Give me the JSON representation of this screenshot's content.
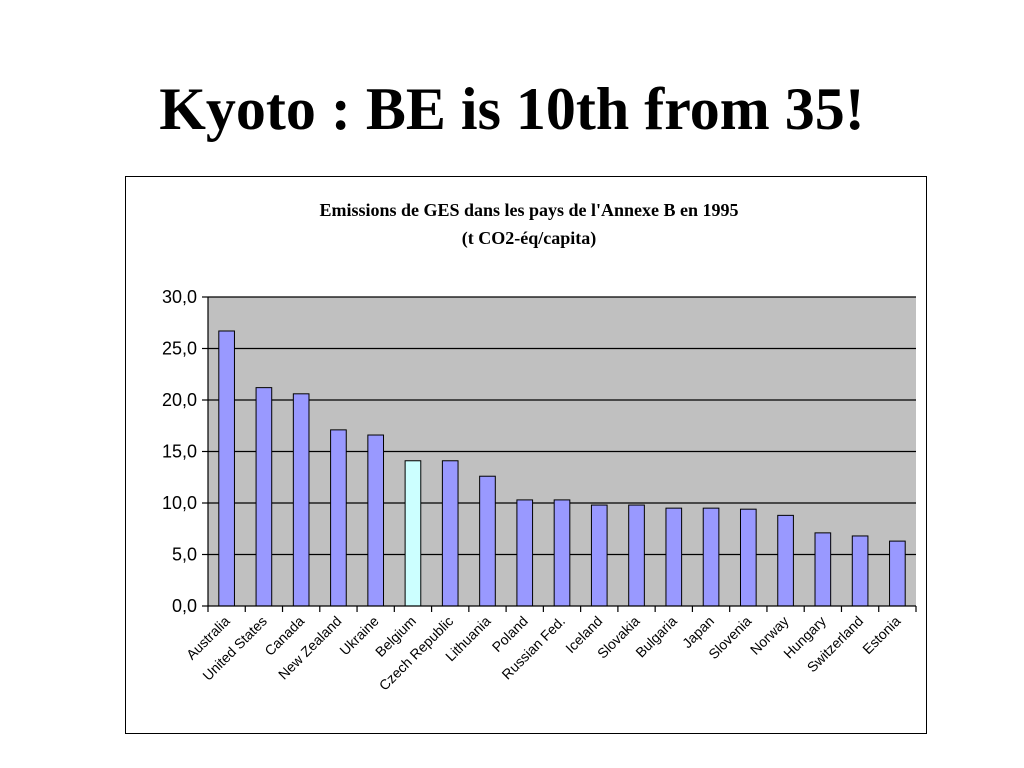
{
  "slide": {
    "title": "Kyoto : BE is 10th from 35!"
  },
  "chart_data": {
    "type": "bar",
    "title": "Emissions de GES dans les pays de l'Annexe B en 1995",
    "subtitle": "(t CO2-éq/capita)",
    "xlabel": "",
    "ylabel": "",
    "ylim": [
      0,
      30
    ],
    "y_tick_labels": [
      "0,0",
      "5,0",
      "10,0",
      "15,0",
      "20,0",
      "25,0",
      "30,0"
    ],
    "grid": true,
    "legend": "none",
    "categories": [
      "Australia",
      "United States",
      "Canada",
      "New Zealand",
      "Ukraine",
      "Belgium",
      "Czech Republic",
      "Lithuania",
      "Poland",
      "Russian Fed.",
      "Iceland",
      "Slovakia",
      "Bulgaria",
      "Japan",
      "Slovenia",
      "Norway",
      "Hungary",
      "Switzerland",
      "Estonia"
    ],
    "values": [
      26.7,
      21.2,
      20.6,
      17.1,
      16.6,
      14.1,
      14.1,
      12.6,
      10.3,
      10.3,
      9.8,
      9.8,
      9.5,
      9.5,
      9.4,
      8.8,
      7.1,
      6.8,
      6.3
    ],
    "highlight_category": "Belgium",
    "colors": {
      "bar": "#9999FF",
      "highlight_bar": "#CCFFFF",
      "plot_background": "#C0C0C0",
      "gridline": "#000000",
      "bar_outline": "#000000"
    }
  }
}
